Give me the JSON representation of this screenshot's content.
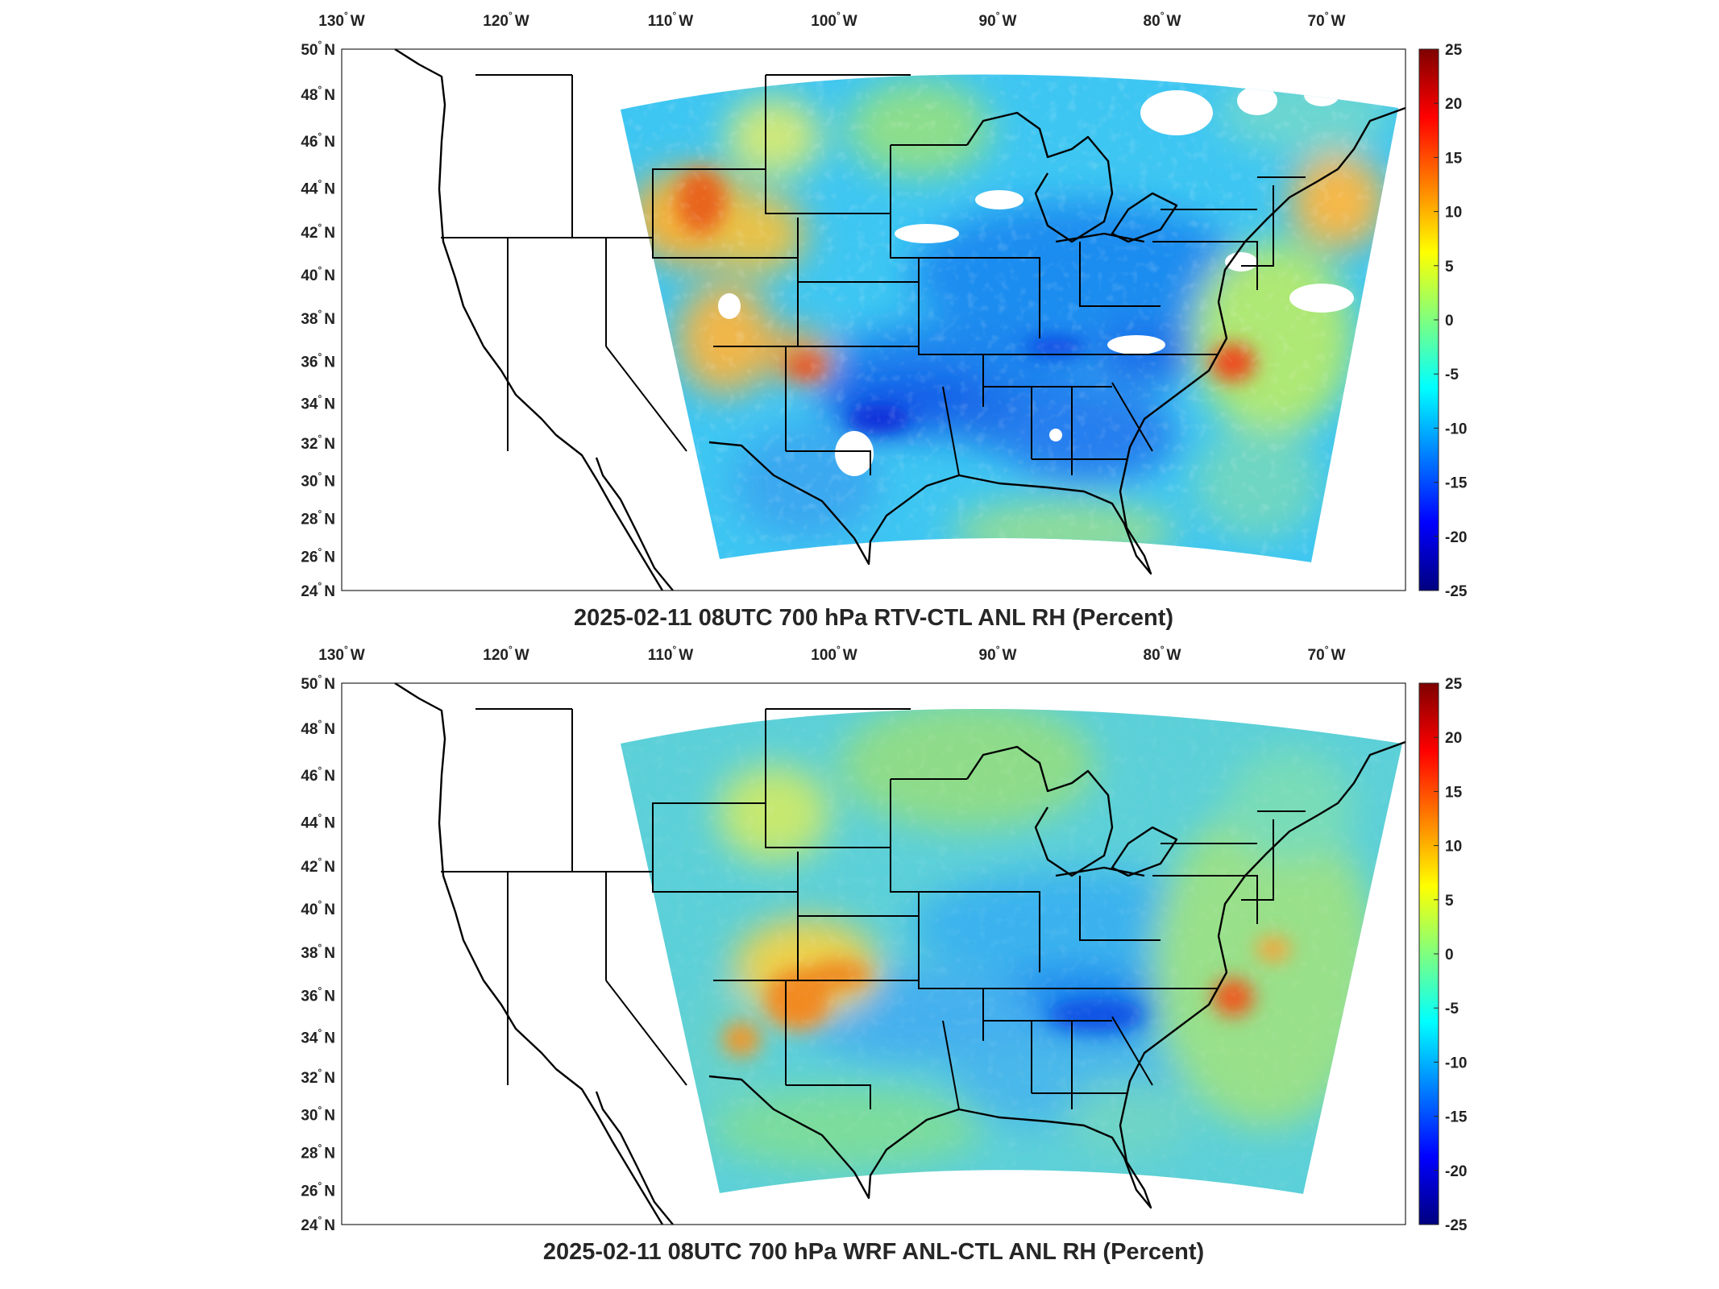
{
  "colors": {
    "colormap": [
      "#00007f",
      "#0000ff",
      "#007fff",
      "#00ffff",
      "#7fff7f",
      "#ffff00",
      "#ff7f00",
      "#ff0000",
      "#7f0000"
    ],
    "missing": "#ffffff",
    "coastline": "#000000"
  },
  "chart_data": [
    {
      "type": "heatmap",
      "title": "2025-02-11 08UTC 700 hPa RTV-CTL ANL RH (Percent)",
      "xlabel": "",
      "ylabel": "",
      "projection": "Lambert conformal (CONUS WRF domain)",
      "xlim": [
        -132,
        -65
      ],
      "ylim": [
        24,
        50
      ],
      "x_ticks": [
        "130 W",
        "120 W",
        "110 W",
        "100 W",
        "90 W",
        "80 W",
        "70 W"
      ],
      "y_ticks": [
        "24 N",
        "26 N",
        "28 N",
        "30 N",
        "32 N",
        "34 N",
        "36 N",
        "38 N",
        "40 N",
        "42 N",
        "44 N",
        "46 N",
        "48 N",
        "50 N"
      ],
      "colorbar": {
        "min": -25,
        "max": 25,
        "ticks": [
          "25",
          "20",
          "15",
          "10",
          "5",
          "0",
          "-5",
          "-10",
          "-15",
          "-20",
          "-25"
        ]
      },
      "grid": false,
      "features": [
        {
          "region": "Central Plains / Mississippi Valley / Southeast",
          "value": -10
        },
        {
          "region": "Texas-Oklahoma band",
          "value": -16
        },
        {
          "region": "Northern Rockies (Wyoming/Idaho)",
          "value": 8
        },
        {
          "region": "Virginia-North Carolina coast",
          "value": 14
        },
        {
          "region": "Gulf of Maine / New England",
          "value": 6
        },
        {
          "region": "Atlantic offshore",
          "value": 0
        },
        {
          "region": "Great Lakes / Ohio Valley",
          "value": -8
        },
        {
          "region": "Missing data patches (Nebraska, Ohio Valley, Texas, Great Lakes)",
          "value": null
        }
      ]
    },
    {
      "type": "heatmap",
      "title": "2025-02-11 08UTC 700 hPa WRF ANL-CTL ANL RH (Percent)",
      "xlabel": "",
      "ylabel": "",
      "projection": "Lambert conformal (CONUS WRF domain)",
      "xlim": [
        -132,
        -65
      ],
      "ylim": [
        24,
        50
      ],
      "x_ticks": [
        "130 W",
        "120 W",
        "110 W",
        "100 W",
        "90 W",
        "80 W",
        "70 W"
      ],
      "y_ticks": [
        "24 N",
        "26 N",
        "28 N",
        "30 N",
        "32 N",
        "34 N",
        "36 N",
        "38 N",
        "40 N",
        "42 N",
        "44 N",
        "46 N",
        "48 N",
        "50 N"
      ],
      "colorbar": {
        "min": -25,
        "max": 25,
        "ticks": [
          "25",
          "20",
          "15",
          "10",
          "5",
          "0",
          "-5",
          "-10",
          "-15",
          "-20",
          "-25"
        ]
      },
      "grid": false,
      "features": [
        {
          "region": "Domain background",
          "value": -3
        },
        {
          "region": "New Mexico / Texas Panhandle",
          "value": 11
        },
        {
          "region": "Virginia-North Carolina coast",
          "value": 13
        },
        {
          "region": "Atlantic offshore (36N, 74W)",
          "value": 8
        },
        {
          "region": "Tennessee / Carolinas",
          "value": -9
        },
        {
          "region": "Gulf coast / Florida",
          "value": -8
        },
        {
          "region": "Colorado / Utah",
          "value": 4
        },
        {
          "region": "Upper Midwest",
          "value": 1
        }
      ]
    }
  ]
}
